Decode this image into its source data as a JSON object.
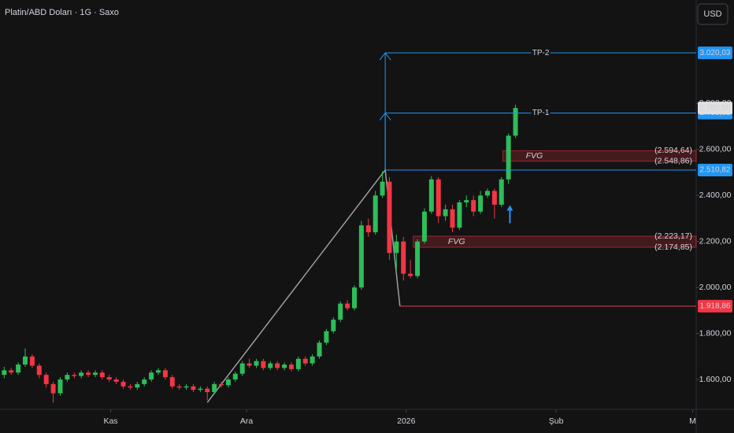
{
  "chart_data": {
    "type": "candlestick",
    "title": "Platin/ABD Doları · 1G · Saxo",
    "currency_button": "USD",
    "up_color": "#2ebd5a",
    "down_color": "#f23645",
    "x": [
      0,
      1,
      2,
      3,
      4,
      5,
      6,
      7,
      8,
      9,
      10,
      11,
      12,
      13,
      14,
      15,
      16,
      17,
      18,
      19,
      20,
      21,
      22,
      23,
      24,
      25,
      26,
      27,
      28,
      29,
      30,
      31,
      32,
      33,
      34,
      35,
      36,
      37,
      38,
      39,
      40,
      41,
      42,
      43,
      44,
      45,
      46,
      47,
      48,
      49,
      50,
      51,
      52,
      53,
      54,
      55,
      56,
      57,
      58,
      59,
      60,
      61,
      62,
      63,
      64,
      65,
      66,
      67,
      68,
      69,
      70,
      71,
      72,
      73
    ],
    "open": [
      1620,
      1640,
      1630,
      1665,
      1700,
      1660,
      1620,
      1580,
      1540,
      1600,
      1620,
      1615,
      1630,
      1620,
      1630,
      1610,
      1600,
      1590,
      1570,
      1565,
      1580,
      1600,
      1630,
      1640,
      1610,
      1570,
      1565,
      1570,
      1555,
      1560,
      1545,
      1580,
      1575,
      1600,
      1625,
      1670,
      1660,
      1680,
      1650,
      1670,
      1650,
      1665,
      1645,
      1690,
      1670,
      1700,
      1760,
      1810,
      1860,
      1930,
      1910,
      2000,
      2270,
      2240,
      2400,
      2460,
      2150,
      2200,
      2060,
      2050,
      2200,
      2330,
      2470,
      2310,
      2340,
      2260,
      2370,
      2380,
      2330,
      2400,
      2420,
      2360,
      2470,
      2660
    ],
    "high": [
      1655,
      1650,
      1675,
      1735,
      1710,
      1670,
      1630,
      1590,
      1610,
      1630,
      1630,
      1640,
      1640,
      1640,
      1640,
      1620,
      1610,
      1600,
      1580,
      1590,
      1610,
      1640,
      1650,
      1650,
      1620,
      1580,
      1580,
      1580,
      1570,
      1570,
      1590,
      1590,
      1610,
      1635,
      1680,
      1690,
      1690,
      1690,
      1680,
      1680,
      1675,
      1675,
      1700,
      1700,
      1710,
      1770,
      1820,
      1870,
      1940,
      1945,
      2010,
      2290,
      2300,
      2420,
      2505,
      2480,
      2230,
      2220,
      2120,
      2210,
      2345,
      2485,
      2480,
      2360,
      2360,
      2380,
      2400,
      2400,
      2420,
      2430,
      2430,
      2480,
      2670,
      2795
    ],
    "low": [
      1605,
      1620,
      1620,
      1655,
      1650,
      1605,
      1565,
      1500,
      1530,
      1590,
      1605,
      1605,
      1610,
      1610,
      1600,
      1590,
      1580,
      1560,
      1555,
      1555,
      1570,
      1590,
      1620,
      1600,
      1560,
      1555,
      1555,
      1545,
      1545,
      1510,
      1535,
      1565,
      1565,
      1590,
      1615,
      1650,
      1650,
      1640,
      1640,
      1640,
      1640,
      1635,
      1635,
      1660,
      1660,
      1690,
      1750,
      1800,
      1850,
      1900,
      1900,
      1990,
      2220,
      2230,
      2390,
      2120,
      2080,
      2030,
      2040,
      2040,
      2190,
      2320,
      2280,
      2290,
      2240,
      2250,
      2350,
      2310,
      2320,
      2390,
      2300,
      2350,
      2450,
      2650
    ],
    "close": [
      1640,
      1630,
      1665,
      1700,
      1660,
      1620,
      1580,
      1540,
      1600,
      1620,
      1615,
      1630,
      1620,
      1630,
      1610,
      1600,
      1590,
      1570,
      1565,
      1580,
      1600,
      1630,
      1640,
      1610,
      1570,
      1565,
      1570,
      1555,
      1560,
      1545,
      1580,
      1575,
      1600,
      1625,
      1670,
      1660,
      1680,
      1650,
      1670,
      1650,
      1665,
      1645,
      1690,
      1670,
      1700,
      1760,
      1810,
      1860,
      1930,
      1910,
      2000,
      2270,
      2240,
      2400,
      2460,
      2150,
      2200,
      2060,
      2050,
      2200,
      2330,
      2470,
      2310,
      2340,
      2260,
      2370,
      2380,
      2330,
      2400,
      2420,
      2360,
      2470,
      2660,
      2780.56
    ],
    "xlim": [
      -0.6,
      98.8
    ],
    "xticks": [
      {
        "value": 15.2,
        "label": "Kas"
      },
      {
        "value": 34.6,
        "label": "Ara"
      },
      {
        "value": 57.4,
        "label": "2026"
      },
      {
        "value": 78.8,
        "label": "Şub"
      },
      {
        "value": 98.3,
        "label": "M"
      }
    ],
    "ylim": [
      1470,
      3250
    ],
    "yticks": [
      {
        "value": 1600,
        "label": "1.600,00"
      },
      {
        "value": 1800,
        "label": "1.800,00"
      },
      {
        "value": 2000,
        "label": "2.000,00"
      },
      {
        "value": 2200,
        "label": "2.200,00"
      },
      {
        "value": 2400,
        "label": "2.400,00"
      },
      {
        "value": 2600,
        "label": "2.600,00"
      },
      {
        "value": 2800,
        "label": "2.800,00"
      }
    ],
    "last_price": {
      "value": 2780.56,
      "label": "2.780,56"
    },
    "price_lines": [
      {
        "name": "TP-2",
        "value": 3020.03,
        "label": "3.020,03",
        "color": "#2196f3",
        "from_x": 54.4
      },
      {
        "name": "TP-1",
        "value": 2758.52,
        "label": "2.758,52",
        "color": "#2196f3",
        "from_x": 54.4
      },
      {
        "value": 2510.82,
        "label": "2.510,82",
        "color": "#2196f3",
        "from_x": 54.4
      },
      {
        "value": 1918.86,
        "label": "1.918,86",
        "color": "#f23645",
        "from_x": 56.5
      }
    ],
    "zones": [
      {
        "name": "FVG",
        "top": {
          "value": 2594.64,
          "label": "(2.594,64)"
        },
        "bottom": {
          "value": 2548.86,
          "label": "(2.548,86)"
        },
        "from_x": 71.2
      },
      {
        "name": "FVG",
        "top": {
          "value": 2223.17,
          "label": "(2.223,17)"
        },
        "bottom": {
          "value": 2174.85,
          "label": "(2.174,85)"
        },
        "from_x": 58.4
      }
    ],
    "trend_line": {
      "x": [
        29,
        54.4,
        56.5
      ],
      "y": [
        1500,
        2510.82,
        1918.86
      ],
      "color": "#9e9e9e"
    },
    "signal_arrow": {
      "x": 72.2,
      "y": 2300,
      "color": "#2196f3"
    }
  }
}
